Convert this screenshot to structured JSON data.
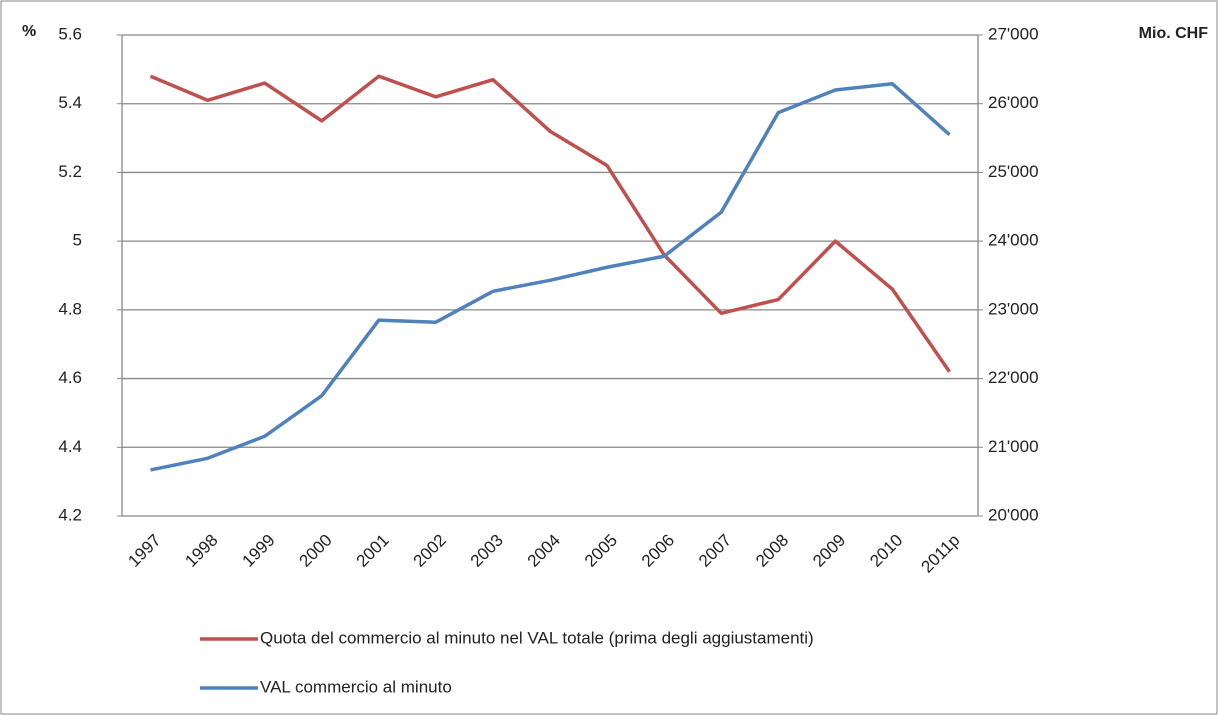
{
  "chart_data": {
    "type": "line",
    "y_label": "%",
    "y2_label": "Mio. CHF",
    "categories": [
      "1997",
      "1998",
      "1999",
      "2000",
      "2001",
      "2002",
      "2003",
      "2004",
      "2005",
      "2006",
      "2007",
      "2008",
      "2009",
      "2010",
      "2011p"
    ],
    "series": [
      {
        "name": "Quota del commercio al minuto nel VAL totale (prima degli aggiustamenti)",
        "color": "#c0504d",
        "values": [
          5.48,
          5.41,
          5.46,
          5.35,
          5.48,
          5.42,
          5.47,
          5.32,
          5.22,
          4.96,
          4.79,
          4.83,
          5.0,
          4.86,
          4.62
        ]
      },
      {
        "name": "VAL commercio al minuto",
        "color": "#4f81bd",
        "axis": "y2",
        "values": [
          20670,
          20840,
          21160,
          21750,
          22850,
          22820,
          23270,
          23430,
          23620,
          23780,
          24420,
          25870,
          26200,
          26290,
          25550
        ]
      }
    ],
    "ylim": [
      4.2,
      5.6
    ],
    "yticks": [
      4.2,
      4.4,
      4.6,
      4.8,
      5,
      5.2,
      5.4,
      5.6
    ],
    "y2lim": [
      20000,
      27000
    ],
    "y2ticks": [
      {
        "value": 20000,
        "label": "20'000"
      },
      {
        "value": 21000,
        "label": "21'000"
      },
      {
        "value": 22000,
        "label": "22'000"
      },
      {
        "value": 23000,
        "label": "23'000"
      },
      {
        "value": 24000,
        "label": "24'000"
      },
      {
        "value": 25000,
        "label": "25'000"
      },
      {
        "value": 26000,
        "label": "26'000"
      },
      {
        "value": 27000,
        "label": "27'000"
      }
    ],
    "grid": true
  }
}
